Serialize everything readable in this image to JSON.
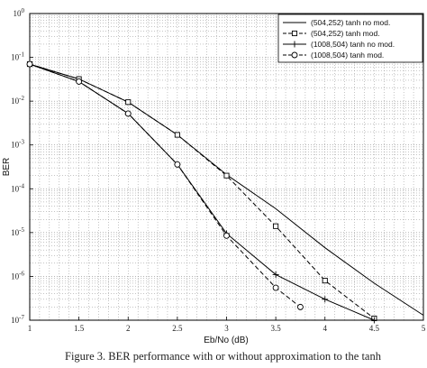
{
  "caption": "Figure 3.   BER performance with or without approximation to the tanh",
  "chart_data": {
    "type": "line",
    "title": "",
    "xlabel": "Eb/No (dB)",
    "ylabel": "BER",
    "xlim": [
      1,
      5
    ],
    "ylim": [
      1e-07,
      1
    ],
    "yscale": "log",
    "grid": true,
    "legend_position": "top-right",
    "x_ticks": [
      "1",
      "1.5",
      "2",
      "2.5",
      "3",
      "3.5",
      "4",
      "4.5",
      "5"
    ],
    "y_ticks": [
      {
        "base": "10",
        "exp": "0"
      },
      {
        "base": "10",
        "exp": "-1"
      },
      {
        "base": "10",
        "exp": "-2"
      },
      {
        "base": "10",
        "exp": "-3"
      },
      {
        "base": "10",
        "exp": "-4"
      },
      {
        "base": "10",
        "exp": "-5"
      },
      {
        "base": "10",
        "exp": "-6"
      },
      {
        "base": "10",
        "exp": "-7"
      }
    ],
    "series": [
      {
        "name": "(504,252) tanh no mod.",
        "line": "solid",
        "marker": "none",
        "x": [
          1,
          1.5,
          2,
          2.5,
          3,
          3.5,
          4,
          4.5,
          5
        ],
        "y": [
          0.07,
          0.032,
          0.0095,
          0.0017,
          0.00021,
          3.5e-05,
          4.5e-06,
          7e-07,
          1.3e-07
        ]
      },
      {
        "name": "(504,252) tanh mod.",
        "line": "dashed",
        "marker": "square",
        "x": [
          1,
          1.5,
          2,
          2.5,
          3,
          3.5,
          4,
          4.5
        ],
        "y": [
          0.07,
          0.032,
          0.0095,
          0.0017,
          0.0002,
          1.4e-05,
          8e-07,
          1.1e-07
        ]
      },
      {
        "name": "(1008,504) tanh no mod.",
        "line": "solid",
        "marker": "plus",
        "x": [
          1,
          1.5,
          2,
          2.5,
          3,
          3.5,
          4,
          4.5
        ],
        "y": [
          0.07,
          0.028,
          0.0052,
          0.00036,
          9.5e-06,
          1.1e-06,
          3e-07,
          1e-07
        ]
      },
      {
        "name": "(1008,504) tanh mod.",
        "line": "dashed",
        "marker": "circle",
        "x": [
          1,
          1.5,
          2,
          2.5,
          3,
          3.5,
          3.75
        ],
        "y": [
          0.07,
          0.028,
          0.0052,
          0.00036,
          8.5e-06,
          5.5e-07,
          2e-07
        ]
      }
    ]
  }
}
